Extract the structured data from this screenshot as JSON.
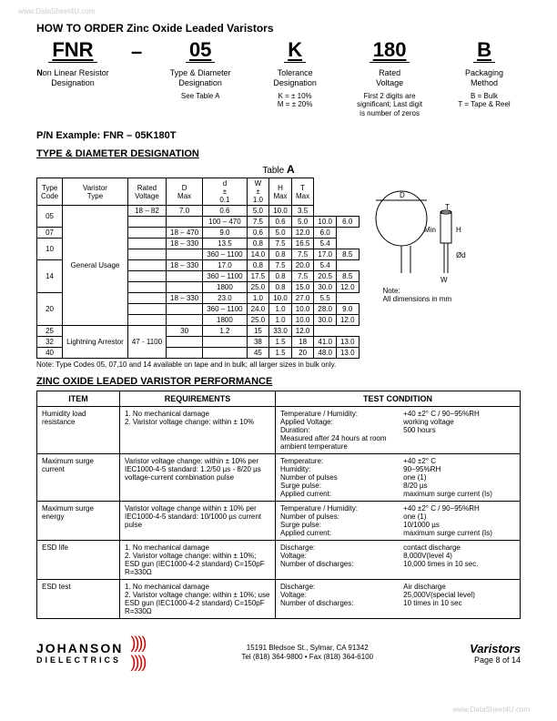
{
  "watermark_top": "www.DataSheet4U.com",
  "watermark_bot": "www.DataSheet4U.com",
  "title": "HOW TO ORDER Zinc Oxide Leaded Varistors",
  "order": {
    "cols": [
      {
        "code": "FNR",
        "label_b": "N",
        "label_rest": "on Linear Resistor",
        "label2": "Designation",
        "desc": ""
      },
      {
        "code": "05",
        "label_b": "",
        "label_rest": "Type & Diameter",
        "label2": "Designation",
        "desc": "See Table A"
      },
      {
        "code": "K",
        "label_b": "",
        "label_rest": "Tolerance",
        "label2": "Designation",
        "desc": "K = ± 10%\nM = ± 20%"
      },
      {
        "code": "180",
        "label_b": "",
        "label_rest": "Rated",
        "label2": "Voltage",
        "desc": "First 2 digits are significant; Last digit is number of zeros"
      },
      {
        "code": "B",
        "label_b": "",
        "label_rest": "Packaging",
        "label2": "Method",
        "desc": "B = Bulk\nT = Tape & Reel"
      }
    ],
    "see_table_a": "A"
  },
  "pn_example_label": "P/N Example:  FNR – 05K180T",
  "type_diam_title": "TYPE & DIAMETER DESIGNATION",
  "table_a_label_pre": "Table",
  "table_a_label_big": "A",
  "tableA": {
    "headers": [
      "Type Code",
      "Varistor Type",
      "Rated Voltage",
      "D Max",
      "d ± 0.1",
      "W ± 1.0",
      "H Max",
      "T Max"
    ],
    "rows": [
      [
        "05",
        "General Usage",
        "18 – 82",
        "7.0",
        "0.6",
        "5.0",
        "10.0",
        "3.5"
      ],
      [
        "",
        "",
        "100 – 470",
        "7.5",
        "0.6",
        "5.0",
        "10.0",
        "6.0"
      ],
      [
        "07",
        "",
        "18 – 470",
        "9.0",
        "0.6",
        "5.0",
        "12.0",
        "6.0"
      ],
      [
        "10",
        "",
        "18 – 330",
        "13.5",
        "0.8",
        "7.5",
        "16.5",
        "5.4"
      ],
      [
        "",
        "",
        "360 – 1100",
        "14.0",
        "0.8",
        "7.5",
        "17.0",
        "8.5"
      ],
      [
        "14",
        "",
        "18 – 330",
        "17.0",
        "0.8",
        "7.5",
        "20.0",
        "5.4"
      ],
      [
        "",
        "",
        "360 – 1100",
        "17.5",
        "0.8",
        "7.5",
        "20.5",
        "8.5"
      ],
      [
        "",
        "",
        "1800",
        "25.0",
        "0.8",
        "15.0",
        "30.0",
        "12.0"
      ],
      [
        "20",
        "",
        "18 – 330",
        "23.0",
        "1.0",
        "10.0",
        "27.0",
        "5.5"
      ],
      [
        "",
        "",
        "360 – 1100",
        "24.0",
        "1.0",
        "10.0",
        "28.0",
        "9.0"
      ],
      [
        "",
        "",
        "1800",
        "25.0",
        "1.0",
        "10.0",
        "30.0",
        "12.0"
      ],
      [
        "25",
        "Lightning Arrestor",
        "47 - 1100",
        "30",
        "1.2",
        "15",
        "33.0",
        "12.0"
      ],
      [
        "32",
        "",
        "",
        "38",
        "1.5",
        "18",
        "41.0",
        "13.0"
      ],
      [
        "40",
        "",
        "",
        "45",
        "1.5",
        "20",
        "48.0",
        "13.0"
      ]
    ],
    "note": "Note:   Type Codes 05, 07,10 and 14 available on tape and in bulk; all larger sizes in bulk only.",
    "diagram_note_label": "Note:",
    "diagram_note": "All dimensions in mm"
  },
  "perf_title": "ZINC OXIDE LEADED VARISTOR PERFORMANCE",
  "perf_headers": [
    "ITEM",
    "REQUIREMENTS",
    "TEST CONDITION"
  ],
  "perf_rows": [
    {
      "item": "Humidity load resistance",
      "req": "1. No mechanical damage\n2. Varistor voltage change: within ± 10%",
      "cond": [
        [
          "Temperature / Humidity:",
          "+40 ±2° C / 90−95%RH"
        ],
        [
          "Applied Voltage:",
          "working voltage"
        ],
        [
          "Duration:",
          "500 hours"
        ],
        [
          "Measured after 24 hours at room ambient temperature",
          ""
        ]
      ]
    },
    {
      "item": "Maximum surge current",
      "req": "Varistor voltage change: within ± 10% per IEC1000-4-5 standard: 1.2/50 µs - 8/20 µs voltage-current combination pulse",
      "cond": [
        [
          "Temperature:",
          "+40 ±2° C"
        ],
        [
          "Humidity:",
          "90−95%RH"
        ],
        [
          "Number of pulses",
          "one (1)"
        ],
        [
          "Surge pulse:",
          "8/20 µs"
        ],
        [
          "Applied current:",
          "maximum surge current (Is)"
        ]
      ]
    },
    {
      "item": "Maximum surge energy",
      "req": "Varistor voltage change within ± 10% per IEC1000-4-5 standard: 10/1000 µs current pulse",
      "cond": [
        [
          "Temperature / Humidity:",
          "+40 ±2° C / 90−95%RH"
        ],
        [
          "Number of pulses:",
          "one (1)"
        ],
        [
          "Surge pulse:",
          "10/1000 µs"
        ],
        [
          "Applied current:",
          "maximum surge current (Is)"
        ]
      ]
    },
    {
      "item": "ESD life",
      "req": "1. No mechanical damage\n2. Varistor voltage change: within ± 10%; ESD gun (IEC1000-4-2 standard) C=150pF R=330Ω",
      "cond": [
        [
          "Discharge:",
          "contact discharge"
        ],
        [
          "Voltage:",
          "8,000V(level 4)"
        ],
        [
          "Number of discharges:",
          "10,000 times in 10 sec."
        ]
      ]
    },
    {
      "item": "ESD test",
      "req": "1. No mechanical damage\n2. Varistor voltage change: within ± 10%; use ESD gun (IEC1000-4-2 standard) C=150pF R=330Ω",
      "cond": [
        [
          "Discharge:",
          "Air discharge"
        ],
        [
          "Voltage:",
          "25,000V(special level)"
        ],
        [
          "Number of discharges:",
          "10 times in 10 sec"
        ]
      ]
    }
  ],
  "footer": {
    "brand1": "JOHANSON",
    "brand2": "DIELECTRICS",
    "addr1": "15191 Bledsoe St., Sylmar, CA 91342",
    "addr2": "Tel (818) 364-9800 • Fax (818) 364-6100",
    "right_big": "Varistors",
    "right_small": "Page 8 of 14"
  }
}
